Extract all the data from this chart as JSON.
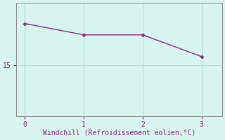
{
  "x": [
    0,
    1,
    2,
    3
  ],
  "y": [
    19.0,
    17.9,
    17.9,
    15.8
  ],
  "line_color": "#882288",
  "marker": "D",
  "marker_size": 2.5,
  "background_color": "#d8f5f0",
  "grid_color": "#aaddcc",
  "axis_color": "#888888",
  "xlabel": "Windchill (Refroidissement éolien,°C)",
  "xlabel_color": "#882288",
  "xlabel_fontsize": 7,
  "tick_color": "#882288",
  "tick_fontsize": 7,
  "xlim": [
    -0.15,
    3.35
  ],
  "ylim": [
    10.0,
    21.0
  ],
  "xticks": [
    0,
    1,
    2,
    3
  ],
  "yticks": [
    15
  ]
}
